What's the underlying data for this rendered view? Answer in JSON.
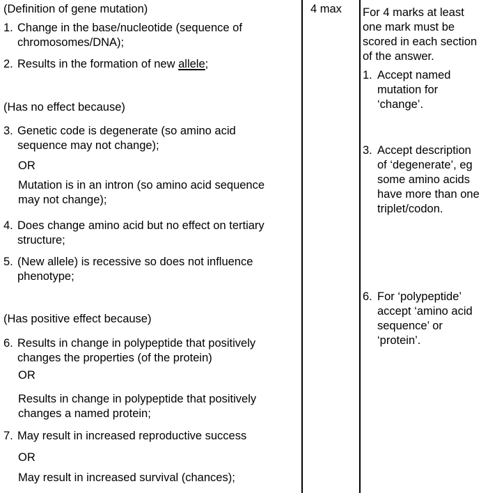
{
  "marks_column": {
    "value": "4 max"
  },
  "answer_column": {
    "paragraphs": [
      {
        "kind": "label",
        "lines": [
          "(Definition of gene mutation)"
        ]
      },
      {
        "kind": "numbered",
        "num": "1.",
        "lines": [
          "Change in the base/nucleotide (sequence of",
          "chromosomes/DNA);"
        ]
      },
      {
        "kind": "numbered",
        "num": "2.",
        "lines": [
          [
            {
              "t": "Results in the formation of new "
            },
            {
              "t": "allele",
              "u": true
            },
            {
              "t": ";"
            }
          ]
        ]
      },
      {
        "kind": "label",
        "lines": [
          "(Has no effect because)"
        ]
      },
      {
        "kind": "numbered",
        "num": "3.",
        "lines": [
          "Genetic code is degenerate (so amino acid",
          "sequence may not change);"
        ]
      },
      {
        "kind": "or",
        "lines": [
          "OR"
        ]
      },
      {
        "kind": "cont",
        "lines": [
          "Mutation is in an intron (so amino acid sequence",
          "may not change);"
        ]
      },
      {
        "kind": "numbered",
        "num": "4.",
        "lines": [
          "Does change amino acid but no effect on tertiary",
          "structure;"
        ]
      },
      {
        "kind": "numbered",
        "num": "5.",
        "lines": [
          "(New allele) is recessive so does not influence",
          "phenotype;"
        ]
      },
      {
        "kind": "label",
        "lines": [
          "(Has positive effect because)"
        ]
      },
      {
        "kind": "numbered",
        "num": "6.",
        "lines": [
          "Results in change in polypeptide that positively",
          "changes the properties (of the protein)"
        ]
      },
      {
        "kind": "or",
        "lines": [
          "OR"
        ]
      },
      {
        "kind": "cont",
        "lines": [
          "Results in change in polypeptide that positively",
          "changes a named protein;"
        ]
      },
      {
        "kind": "numbered",
        "num": "7.",
        "lines": [
          "May result in increased reproductive success"
        ]
      },
      {
        "kind": "or",
        "lines": [
          "OR"
        ]
      },
      {
        "kind": "cont",
        "lines": [
          "May result in increased survival (chances);"
        ]
      }
    ]
  },
  "notes_column": {
    "paragraphs": [
      {
        "kind": "plain",
        "lines": [
          "For 4 marks at least",
          "one mark must be",
          "scored in each section",
          "of the answer."
        ]
      },
      {
        "kind": "numbered",
        "num": "1.",
        "lines": [
          "Accept named",
          "mutation for",
          "‘change’."
        ]
      },
      {
        "kind": "numbered",
        "num": "3.",
        "lines": [
          "Accept description",
          "of ‘degenerate’, eg",
          "some amino acids",
          "have more than one",
          "triplet/codon."
        ]
      },
      {
        "kind": "numbered",
        "num": "6.",
        "lines": [
          "For ‘polypeptide’",
          "accept ‘amino acid",
          "sequence’ or",
          "‘protein’."
        ]
      }
    ]
  }
}
